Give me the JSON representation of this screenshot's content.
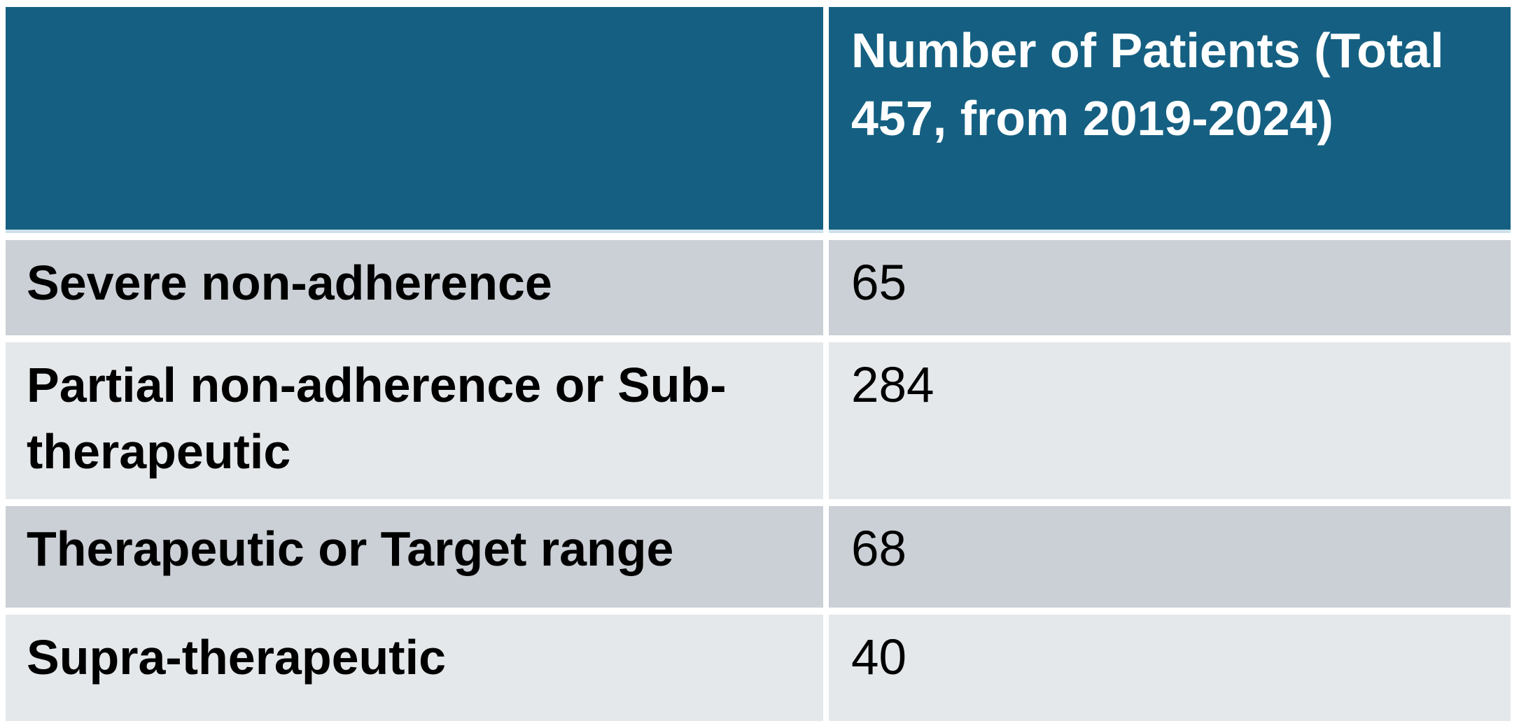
{
  "table": {
    "header": {
      "col1_label": "",
      "col2_label": "Number of Patients (Total 457, from 2019-2024)"
    },
    "rows": [
      {
        "label": "Severe non-adherence",
        "value": "65"
      },
      {
        "label": "Partial non-adherence or Sub-therapeutic",
        "value": "284"
      },
      {
        "label": "Therapeutic or Target range",
        "value": "68"
      },
      {
        "label": "Supra-therapeutic",
        "value": "40"
      }
    ],
    "colors": {
      "header_bg": "#156082",
      "header_text": "#ffffff",
      "header_underline": "#cfe2ec",
      "row_band_dark": "#cbd0d6",
      "row_band_light": "#e5e8ea",
      "body_text": "#000000",
      "grid_gap": "#ffffff"
    }
  },
  "chart_data": {
    "type": "table",
    "title": "",
    "columns": [
      "",
      "Number of Patients (Total 457, from 2019-2024)"
    ],
    "categories": [
      "Severe non-adherence",
      "Partial non-adherence or Sub-therapeutic",
      "Therapeutic or Target range",
      "Supra-therapeutic"
    ],
    "values": [
      65,
      284,
      68,
      40
    ],
    "total_patients": 457,
    "period": "2019-2024",
    "legend_position": "none",
    "grid": false
  }
}
